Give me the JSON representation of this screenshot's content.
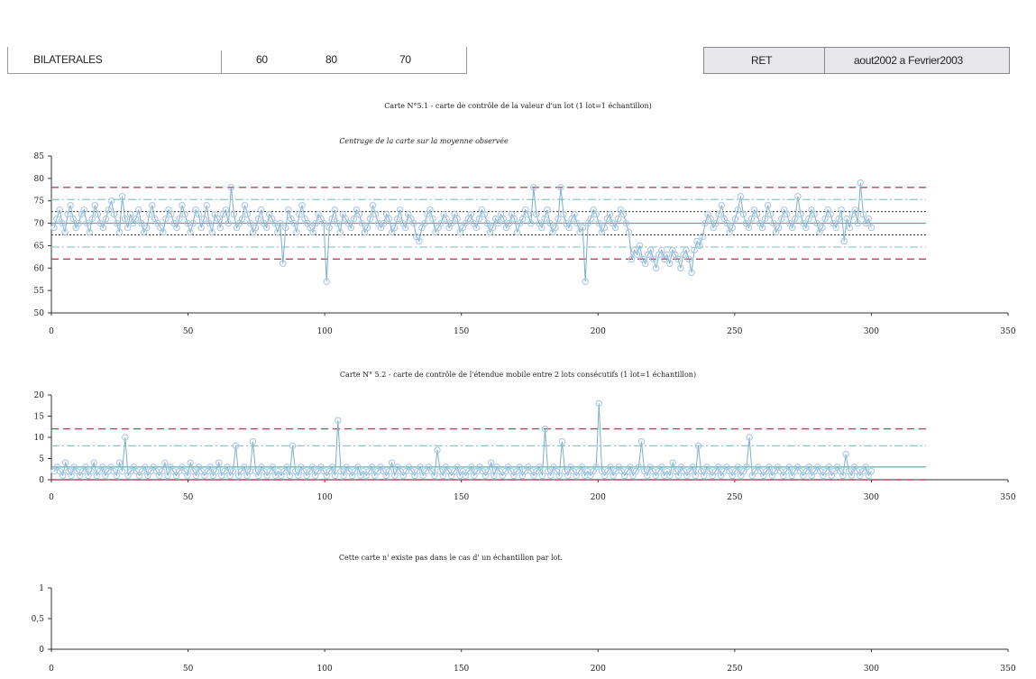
{
  "header": {
    "left_label": "BILATERALES",
    "values": [
      "60",
      "80",
      "70"
    ],
    "right_code": "RET",
    "right_period": "aout2002 a Fevrier2003"
  },
  "charts": {
    "chart1_title": "Carte N°5.1 - carte de contrôle de la valeur d'un lot (1 lot=1 échantillon)",
    "chart1_subtitle": "Centrage de la carte sur la moyenne observée",
    "chart2_title": "Carte N° 5.2 - carte de contrôle de l'étendue mobile entre 2 lots consécutifs (1 lot=1 échantillon)",
    "chart3_title": "Cette carte n' existe pas dans le cas d' un échantillon par lot."
  },
  "colors": {
    "series": "#a9c6e6",
    "line": "#7ab0c8",
    "control_limit": "#c0405a",
    "warning_limit": "#8fc7c3",
    "inner_limit": "#333333",
    "center": "#3a9a9a"
  },
  "chart_data": [
    {
      "type": "line",
      "title": "Carte N°5.1 - carte de contrôle de la valeur d'un lot (1 lot=1 échantillon)",
      "subtitle": "Centrage de la carte sur la moyenne observée",
      "xlim": [
        0,
        350
      ],
      "ylim": [
        50,
        85
      ],
      "x_ticks": [
        0,
        50,
        100,
        150,
        200,
        250,
        300,
        350
      ],
      "y_ticks": [
        50,
        55,
        60,
        65,
        70,
        75,
        80,
        85
      ],
      "reference_lines": {
        "ucl": 78,
        "uwl": 75.3,
        "upper_inner": 72.6,
        "center": 70,
        "lower_inner": 67.4,
        "lwl": 64.7,
        "lcl": 62
      },
      "reference_extent": [
        0,
        320
      ],
      "series": [
        {
          "n": 300,
          "values": [
            69,
            71,
            73,
            70,
            68,
            72,
            74,
            71,
            69,
            70,
            72,
            73,
            70,
            68,
            71,
            74,
            72,
            70,
            69,
            71,
            73,
            75,
            72,
            70,
            68,
            76,
            71,
            69,
            72,
            70,
            71,
            73,
            70,
            68,
            69,
            72,
            74,
            71,
            70,
            69,
            68,
            71,
            73,
            72,
            70,
            69,
            71,
            74,
            72,
            70,
            68,
            70,
            73,
            72,
            69,
            71,
            74,
            70,
            68,
            72,
            71,
            69,
            72,
            73,
            70,
            78,
            72,
            69,
            70,
            71,
            74,
            72,
            70,
            68,
            69,
            71,
            73,
            70,
            69,
            72,
            71,
            70,
            68,
            70,
            61,
            69,
            73,
            71,
            70,
            68,
            72,
            74,
            71,
            70,
            69,
            68,
            70,
            72,
            71,
            70,
            57,
            69,
            71,
            73,
            70,
            68,
            72,
            71,
            70,
            69,
            71,
            73,
            72,
            70,
            68,
            69,
            71,
            74,
            72,
            70,
            69,
            70,
            72,
            71,
            68,
            69,
            71,
            73,
            70,
            69,
            72,
            71,
            70,
            67,
            66,
            69,
            70,
            72,
            73,
            71,
            68,
            69,
            70,
            72,
            71,
            69,
            70,
            72,
            71,
            68,
            69,
            70,
            71,
            72,
            70,
            69,
            71,
            73,
            72,
            70,
            68,
            69,
            71,
            70,
            72,
            71,
            69,
            70,
            72,
            71,
            68,
            70,
            71,
            73,
            72,
            70,
            78,
            72,
            70,
            69,
            71,
            73,
            70,
            68,
            69,
            71,
            78,
            72,
            70,
            69,
            71,
            72,
            70,
            68,
            69,
            57,
            70,
            71,
            73,
            72,
            70,
            68,
            69,
            71,
            72,
            70,
            69,
            71,
            73,
            72,
            70,
            68,
            62,
            64,
            63,
            65,
            62,
            61,
            63,
            64,
            62,
            60,
            63,
            64,
            62,
            63,
            61,
            64,
            63,
            62,
            60,
            63,
            64,
            62,
            59,
            64,
            66,
            65,
            67,
            70,
            72,
            71,
            69,
            70,
            72,
            74,
            71,
            70,
            68,
            69,
            71,
            73,
            76,
            72,
            70,
            69,
            71,
            73,
            72,
            70,
            69,
            71,
            74,
            72,
            70,
            68,
            69,
            71,
            73,
            72,
            70,
            69,
            71,
            76,
            72,
            70,
            69,
            71,
            73,
            72,
            70,
            68,
            69,
            71,
            73,
            72,
            70,
            69,
            71,
            73,
            66,
            71,
            69,
            72,
            73,
            70,
            79,
            72,
            70,
            71,
            69
          ]
        }
      ]
    },
    {
      "type": "line",
      "title": "Carte N° 5.2 - carte de contrôle de l'étendue mobile entre 2 lots consécutifs (1 lot=1 échantillon)",
      "xlim": [
        0,
        350
      ],
      "ylim": [
        0,
        20
      ],
      "x_ticks": [
        0,
        50,
        100,
        150,
        200,
        250,
        300,
        350
      ],
      "y_ticks": [
        0,
        5,
        10,
        15,
        20
      ],
      "reference_lines": {
        "ucl": 12,
        "uwl": 8,
        "center": 3,
        "lcl": 0
      },
      "reference_extent": [
        0,
        320
      ],
      "series": [
        {
          "n": 300,
          "values": [
            2,
            3,
            2,
            1,
            4,
            2,
            1,
            3,
            2,
            1,
            2,
            3,
            1,
            2,
            4,
            1,
            2,
            3,
            1,
            2,
            3,
            2,
            1,
            4,
            2,
            10,
            1,
            2,
            3,
            2,
            1,
            2,
            3,
            1,
            2,
            3,
            2,
            1,
            2,
            4,
            1,
            3,
            2,
            1,
            2,
            3,
            2,
            1,
            4,
            2,
            1,
            3,
            2,
            1,
            2,
            3,
            1,
            2,
            4,
            1,
            2,
            3,
            1,
            2,
            8,
            1,
            2,
            3,
            1,
            2,
            9,
            2,
            1,
            3,
            2,
            1,
            2,
            3,
            1,
            2,
            1,
            2,
            3,
            1,
            8,
            2,
            1,
            3,
            2,
            1,
            2,
            3,
            1,
            2,
            3,
            2,
            1,
            2,
            3,
            1,
            14,
            2,
            1,
            3,
            2,
            1,
            2,
            3,
            1,
            2,
            1,
            2,
            3,
            1,
            2,
            3,
            2,
            1,
            2,
            4,
            1,
            3,
            2,
            1,
            2,
            3,
            2,
            1,
            2,
            3,
            1,
            2,
            3,
            2,
            1,
            7,
            2,
            1,
            3,
            2,
            1,
            2,
            3,
            1,
            2,
            1,
            2,
            3,
            1,
            2,
            3,
            2,
            1,
            2,
            4,
            1,
            3,
            2,
            1,
            2,
            3,
            2,
            1,
            2,
            3,
            1,
            2,
            3,
            2,
            1,
            2,
            3,
            1,
            12,
            2,
            1,
            3,
            2,
            1,
            9,
            2,
            1,
            3,
            2,
            1,
            2,
            3,
            1,
            2,
            1,
            2,
            3,
            18,
            2,
            1,
            2,
            3,
            1,
            2,
            3,
            2,
            1,
            2,
            3,
            1,
            2,
            3,
            9,
            2,
            1,
            3,
            2,
            1,
            2,
            3,
            1,
            2,
            1,
            4,
            2,
            1,
            3,
            2,
            1,
            2,
            3,
            1,
            8,
            2,
            1,
            3,
            2,
            1,
            2,
            3,
            1,
            2,
            3,
            2,
            1,
            2,
            3,
            1,
            2,
            3,
            10,
            1,
            2,
            3,
            2,
            1,
            2,
            3,
            1,
            2,
            3,
            2,
            1,
            2,
            3,
            1,
            2,
            3,
            2,
            1,
            2,
            3,
            1,
            2,
            3,
            2,
            1,
            2,
            3,
            1,
            2,
            3,
            2,
            1,
            6,
            2,
            1,
            3,
            2,
            1,
            2,
            3,
            1,
            2
          ]
        }
      ]
    },
    {
      "type": "line",
      "title": "Cette carte n' existe pas dans le cas d' un échantillon par lot.",
      "xlim": [
        0,
        350
      ],
      "ylim": [
        0,
        1
      ],
      "x_ticks": [
        0,
        50,
        100,
        150,
        200,
        250,
        300,
        350
      ],
      "y_ticks": [
        "0",
        "0,5",
        "1"
      ],
      "series": []
    }
  ]
}
